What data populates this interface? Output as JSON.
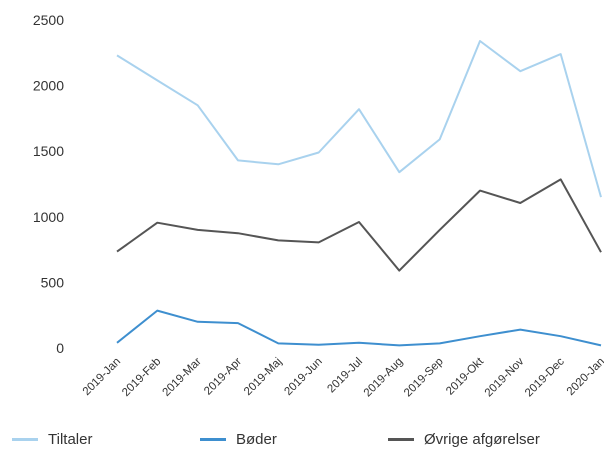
{
  "chart_data": {
    "type": "line",
    "title": "",
    "xlabel": "",
    "ylabel": "",
    "categories": [
      "2019-Jan",
      "2019-Feb",
      "2019-Mar",
      "2019-Apr",
      "2019-Maj",
      "2019-Jun",
      "2019-Jul",
      "2019-Aug",
      "2019-Sep",
      "2019-Okt",
      "2019-Nov",
      "2019-Dec",
      "2020-Jan"
    ],
    "ylim": [
      0,
      2500
    ],
    "yticks": [
      "0",
      "500",
      "1000",
      "1500",
      "2000",
      "2500"
    ],
    "grid": false,
    "legend_position": "bottom",
    "series": [
      {
        "name": "Tiltaler",
        "color": "#a9d2ee",
        "values": [
          2230,
          2040,
          1850,
          1430,
          1400,
          1490,
          1820,
          1340,
          1590,
          2340,
          2110,
          2240,
          1150
        ]
      },
      {
        "name": "Bøder",
        "color": "#3e8fcf",
        "values": [
          40,
          285,
          200,
          190,
          35,
          25,
          40,
          20,
          35,
          90,
          140,
          90,
          20
        ]
      },
      {
        "name": "Øvrige afgørelser",
        "color": "#555555",
        "values": [
          735,
          955,
          900,
          875,
          820,
          805,
          960,
          590,
          900,
          1200,
          1105,
          1285,
          730
        ]
      }
    ]
  }
}
